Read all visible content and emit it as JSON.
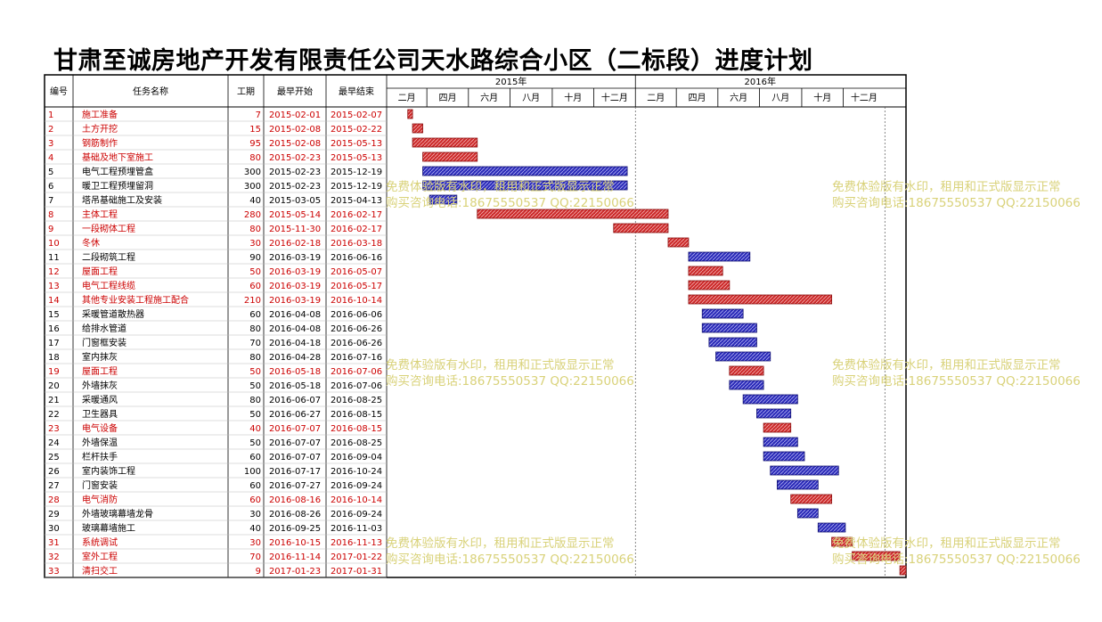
{
  "title": "甘肃至诚房地产开发有限责任公司天水路综合小区（二标段）进度计划",
  "headers": {
    "id": "编号",
    "name": "任务名称",
    "duration": "工期",
    "start": "最早开始",
    "end": "最早结束"
  },
  "watermark": {
    "line1": "免费体验版有水印，租用和正式版显示正常",
    "line2": "购买咨询电话:18675550537 QQ:22150066"
  },
  "colors": {
    "critical": "#cc2a2a",
    "normal": "#2b2bb8",
    "critical_text": "#cc0000",
    "normal_text": "#000000",
    "watermark": "#d9d27a"
  },
  "chart_data": {
    "type": "gantt",
    "timeline": {
      "start": "2015-01-01",
      "end": "2017-01-31",
      "years": [
        {
          "label": "2015年",
          "start": "2015-01-01",
          "end": "2015-12-31"
        },
        {
          "label": "2016年",
          "start": "2016-01-01",
          "end": "2016-12-31"
        }
      ],
      "months": [
        {
          "label": "二月",
          "start": "2015-01-01",
          "end": "2015-03-01"
        },
        {
          "label": "四月",
          "start": "2015-03-01",
          "end": "2015-05-01"
        },
        {
          "label": "六月",
          "start": "2015-05-01",
          "end": "2015-07-01"
        },
        {
          "label": "八月",
          "start": "2015-07-01",
          "end": "2015-09-01"
        },
        {
          "label": "十月",
          "start": "2015-09-01",
          "end": "2015-11-01"
        },
        {
          "label": "十二月",
          "start": "2015-11-01",
          "end": "2016-01-01"
        },
        {
          "label": "二月",
          "start": "2016-01-01",
          "end": "2016-03-01"
        },
        {
          "label": "四月",
          "start": "2016-03-01",
          "end": "2016-05-01"
        },
        {
          "label": "六月",
          "start": "2016-05-01",
          "end": "2016-07-01"
        },
        {
          "label": "八月",
          "start": "2016-07-01",
          "end": "2016-09-01"
        },
        {
          "label": "十月",
          "start": "2016-09-01",
          "end": "2016-11-01"
        },
        {
          "label": "十二月",
          "start": "2016-11-01",
          "end": "2017-01-01"
        }
      ],
      "dashed_lines": [
        "2016-01-01",
        "2017-01-01"
      ]
    },
    "tasks": [
      {
        "id": "1",
        "name": "施工准备",
        "duration": "7",
        "start": "2015-02-01",
        "end": "2015-02-07",
        "critical": true
      },
      {
        "id": "2",
        "name": "土方开挖",
        "duration": "15",
        "start": "2015-02-08",
        "end": "2015-02-22",
        "critical": true
      },
      {
        "id": "3",
        "name": "钢筋制作",
        "duration": "95",
        "start": "2015-02-08",
        "end": "2015-05-13",
        "critical": true
      },
      {
        "id": "4",
        "name": "基础及地下室施工",
        "duration": "80",
        "start": "2015-02-23",
        "end": "2015-05-13",
        "critical": true
      },
      {
        "id": "5",
        "name": "电气工程预埋管盒",
        "duration": "300",
        "start": "2015-02-23",
        "end": "2015-12-19",
        "critical": false
      },
      {
        "id": "6",
        "name": "暖卫工程预埋留洞",
        "duration": "300",
        "start": "2015-02-23",
        "end": "2015-12-19",
        "critical": false
      },
      {
        "id": "7",
        "name": "塔吊基础施工及安装",
        "duration": "40",
        "start": "2015-03-05",
        "end": "2015-04-13",
        "critical": false
      },
      {
        "id": "8",
        "name": "主体工程",
        "duration": "280",
        "start": "2015-05-14",
        "end": "2016-02-17",
        "critical": true
      },
      {
        "id": "9",
        "name": "一段砌体工程",
        "duration": "80",
        "start": "2015-11-30",
        "end": "2016-02-17",
        "critical": true
      },
      {
        "id": "10",
        "name": "冬休",
        "duration": "30",
        "start": "2016-02-18",
        "end": "2016-03-18",
        "critical": true
      },
      {
        "id": "11",
        "name": "二段砌筑工程",
        "duration": "90",
        "start": "2016-03-19",
        "end": "2016-06-16",
        "critical": false
      },
      {
        "id": "12",
        "name": "屋面工程",
        "duration": "50",
        "start": "2016-03-19",
        "end": "2016-05-07",
        "critical": true
      },
      {
        "id": "13",
        "name": "电气工程线缆",
        "duration": "60",
        "start": "2016-03-19",
        "end": "2016-05-17",
        "critical": true
      },
      {
        "id": "14",
        "name": "其他专业安装工程施工配合",
        "duration": "210",
        "start": "2016-03-19",
        "end": "2016-10-14",
        "critical": true
      },
      {
        "id": "15",
        "name": "采暖管道散热器",
        "duration": "60",
        "start": "2016-04-08",
        "end": "2016-06-06",
        "critical": false
      },
      {
        "id": "16",
        "name": "给排水管道",
        "duration": "80",
        "start": "2016-04-08",
        "end": "2016-06-26",
        "critical": false
      },
      {
        "id": "17",
        "name": "门窗框安装",
        "duration": "70",
        "start": "2016-04-18",
        "end": "2016-06-26",
        "critical": false
      },
      {
        "id": "18",
        "name": "室内抹灰",
        "duration": "80",
        "start": "2016-04-28",
        "end": "2016-07-16",
        "critical": false
      },
      {
        "id": "19",
        "name": "屋面工程",
        "duration": "50",
        "start": "2016-05-18",
        "end": "2016-07-06",
        "critical": true
      },
      {
        "id": "20",
        "name": "外墙抹灰",
        "duration": "50",
        "start": "2016-05-18",
        "end": "2016-07-06",
        "critical": false
      },
      {
        "id": "21",
        "name": "采暖通风",
        "duration": "80",
        "start": "2016-06-07",
        "end": "2016-08-25",
        "critical": false
      },
      {
        "id": "22",
        "name": "卫生器具",
        "duration": "50",
        "start": "2016-06-27",
        "end": "2016-08-15",
        "critical": false
      },
      {
        "id": "23",
        "name": "电气设备",
        "duration": "40",
        "start": "2016-07-07",
        "end": "2016-08-15",
        "critical": true
      },
      {
        "id": "24",
        "name": "外墙保温",
        "duration": "50",
        "start": "2016-07-07",
        "end": "2016-08-25",
        "critical": false
      },
      {
        "id": "25",
        "name": "栏杆扶手",
        "duration": "60",
        "start": "2016-07-07",
        "end": "2016-09-04",
        "critical": false
      },
      {
        "id": "26",
        "name": "室内装饰工程",
        "duration": "100",
        "start": "2016-07-17",
        "end": "2016-10-24",
        "critical": false
      },
      {
        "id": "27",
        "name": "门窗安装",
        "duration": "60",
        "start": "2016-07-27",
        "end": "2016-09-24",
        "critical": false
      },
      {
        "id": "28",
        "name": "电气消防",
        "duration": "60",
        "start": "2016-08-16",
        "end": "2016-10-14",
        "critical": true
      },
      {
        "id": "29",
        "name": "外墙玻璃幕墙龙骨",
        "duration": "30",
        "start": "2016-08-26",
        "end": "2016-09-24",
        "critical": false
      },
      {
        "id": "30",
        "name": "玻璃幕墙施工",
        "duration": "40",
        "start": "2016-09-25",
        "end": "2016-11-03",
        "critical": false
      },
      {
        "id": "31",
        "name": "系统调试",
        "duration": "30",
        "start": "2016-10-15",
        "end": "2016-11-13",
        "critical": true
      },
      {
        "id": "32",
        "name": "室外工程",
        "duration": "70",
        "start": "2016-11-14",
        "end": "2017-01-22",
        "critical": true
      },
      {
        "id": "33",
        "name": "清扫交工",
        "duration": "9",
        "start": "2017-01-23",
        "end": "2017-01-31",
        "critical": true
      }
    ]
  }
}
